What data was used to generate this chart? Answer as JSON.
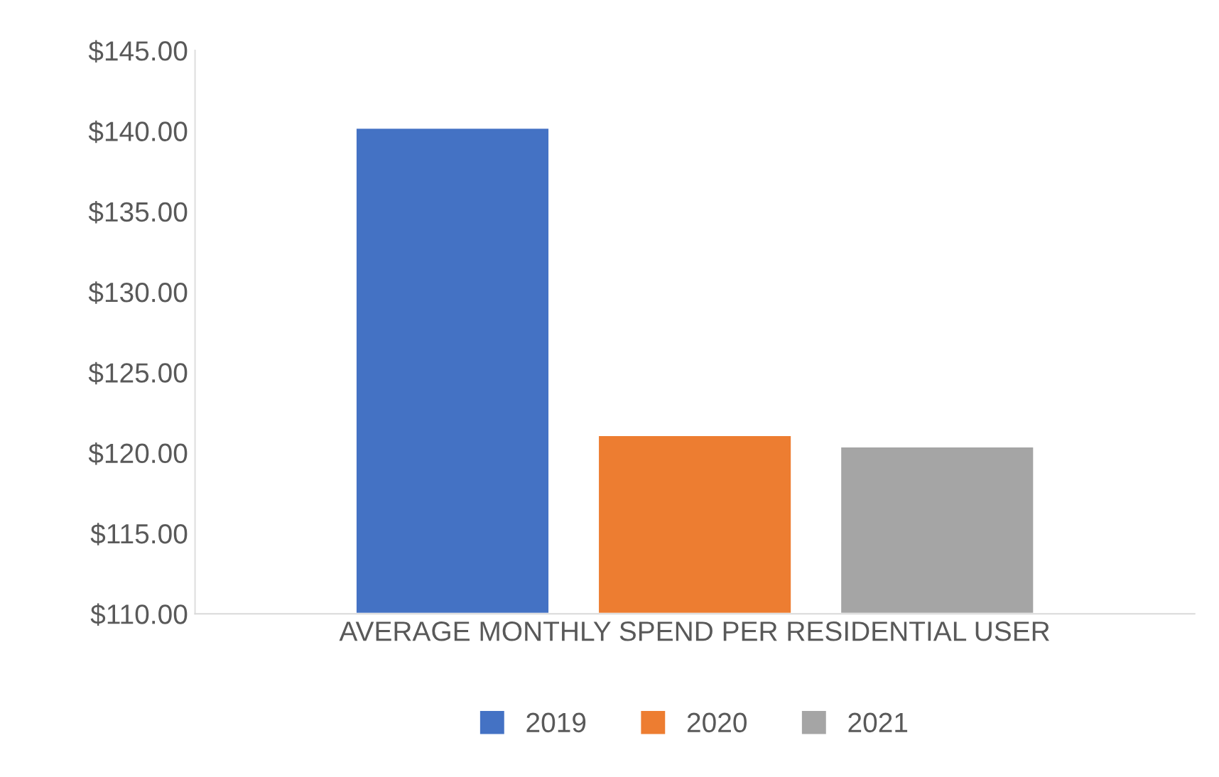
{
  "chart_data": {
    "type": "bar",
    "categories": [
      "AVERAGE MONTHLY SPEND PER RESIDENTIAL USER"
    ],
    "series": [
      {
        "name": "2019",
        "color": "#4472c4",
        "values": [
          140.2
        ]
      },
      {
        "name": "2020",
        "color": "#ed7d31",
        "values": [
          121.1
        ]
      },
      {
        "name": "2021",
        "color": "#a5a5a5",
        "values": [
          120.4
        ]
      }
    ],
    "ylim": [
      110,
      145
    ],
    "yticks": [
      {
        "value": 110,
        "label": "$110.00"
      },
      {
        "value": 115,
        "label": "$115.00"
      },
      {
        "value": 120,
        "label": "$120.00"
      },
      {
        "value": 125,
        "label": "$125.00"
      },
      {
        "value": 130,
        "label": "$130.00"
      },
      {
        "value": 135,
        "label": "$135.00"
      },
      {
        "value": 140,
        "label": "$140.00"
      },
      {
        "value": 145,
        "label": "$145.00"
      }
    ],
    "grid": false,
    "legend": "bottom"
  }
}
